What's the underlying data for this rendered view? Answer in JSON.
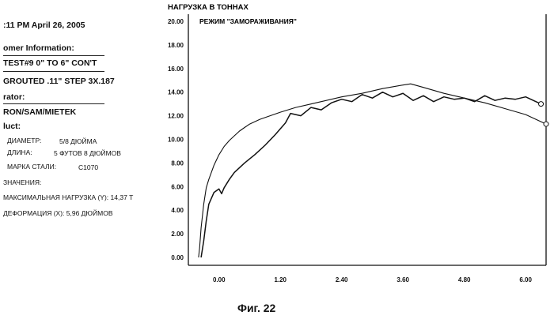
{
  "header": {
    "timestamp": ":11 PM April 26, 2005",
    "customer_label": "omer Information:",
    "test_line": "TEST#9  0\" TO 6\" CON'T",
    "grouted_line": "GROUTED .11\" STEP 3X.187",
    "operator_label": "rator:",
    "operator_value": "RON/SAM/MIETEK",
    "product_label": "luct:"
  },
  "product": {
    "diameter_label": "ДИАМЕТР:",
    "diameter_value": "5/8 ДЮЙМА",
    "length_label": "ДЛИНА:",
    "length_value": "5 ФУТОВ 8 ДЮЙМОВ",
    "steel_label": "МАРКА СТАЛИ:",
    "steel_value": "C1070"
  },
  "values": {
    "section_label": "ЗНАЧЕНИЯ:",
    "max_load": "МАКСИМАЛЬНАЯ НАГРУЗКА (Y): 14,37 Т",
    "deformation": "ДЕФОРМАЦИЯ (X): 5,96 ДЮЙМОВ"
  },
  "caption": "Фиг. 22",
  "chart_data": {
    "type": "line",
    "title": "НАГРУЗКА В ТОННАХ",
    "annotation": "РЕЖИМ \"ЗАМОРАЖИВАНИЯ\"",
    "xlabel": "",
    "ylabel": "НАГРУЗКА В ТОННАХ",
    "xlim": [
      -0.6,
      6.4
    ],
    "ylim": [
      0,
      20
    ],
    "x_ticks": [
      "0.00",
      "1.20",
      "2.40",
      "3.60",
      "4.80",
      "6.00"
    ],
    "y_ticks": [
      "20.00",
      "18.00",
      "16.00",
      "14.00",
      "12.00",
      "10.00",
      "8.00",
      "6.00",
      "4.00",
      "2.00",
      "0.00"
    ],
    "grid": false,
    "series": [
      {
        "x": [
          -0.4,
          -0.38,
          -0.35,
          -0.3,
          -0.25,
          -0.2,
          -0.1,
          0.0,
          0.1,
          0.2,
          0.3,
          0.4,
          0.5,
          0.6,
          0.8,
          1.0,
          1.2,
          1.5,
          1.8,
          2.0,
          2.4,
          2.8,
          3.2,
          3.6,
          3.75,
          4.0,
          4.4,
          4.8,
          5.2,
          5.6,
          6.0,
          6.2,
          6.4
        ],
        "y": [
          0.0,
          0.8,
          2.5,
          4.5,
          5.9,
          6.6,
          7.8,
          8.7,
          9.4,
          9.9,
          10.3,
          10.7,
          11.0,
          11.3,
          11.7,
          12.0,
          12.3,
          12.7,
          13.0,
          13.2,
          13.6,
          13.9,
          14.3,
          14.6,
          14.7,
          14.4,
          13.9,
          13.5,
          13.1,
          12.6,
          12.1,
          11.7,
          11.3
        ]
      },
      {
        "x": [
          -0.35,
          -0.3,
          -0.25,
          -0.2,
          -0.1,
          0.0,
          0.05,
          0.1,
          0.2,
          0.3,
          0.5,
          0.7,
          0.9,
          1.1,
          1.3,
          1.4,
          1.6,
          1.8,
          2.0,
          2.2,
          2.4,
          2.6,
          2.8,
          3.0,
          3.2,
          3.4,
          3.6,
          3.8,
          4.0,
          4.2,
          4.4,
          4.6,
          4.8,
          5.0,
          5.2,
          5.4,
          5.6,
          5.8,
          6.0,
          6.2,
          6.3
        ],
        "y": [
          0.0,
          1.4,
          3.1,
          4.5,
          5.5,
          5.8,
          5.4,
          5.9,
          6.6,
          7.2,
          8.0,
          8.7,
          9.5,
          10.4,
          11.4,
          12.2,
          12.0,
          12.7,
          12.5,
          13.1,
          13.4,
          13.2,
          13.8,
          13.5,
          14.0,
          13.6,
          13.9,
          13.3,
          13.7,
          13.2,
          13.6,
          13.4,
          13.5,
          13.2,
          13.7,
          13.3,
          13.5,
          13.4,
          13.6,
          13.2,
          13.0
        ]
      }
    ]
  }
}
